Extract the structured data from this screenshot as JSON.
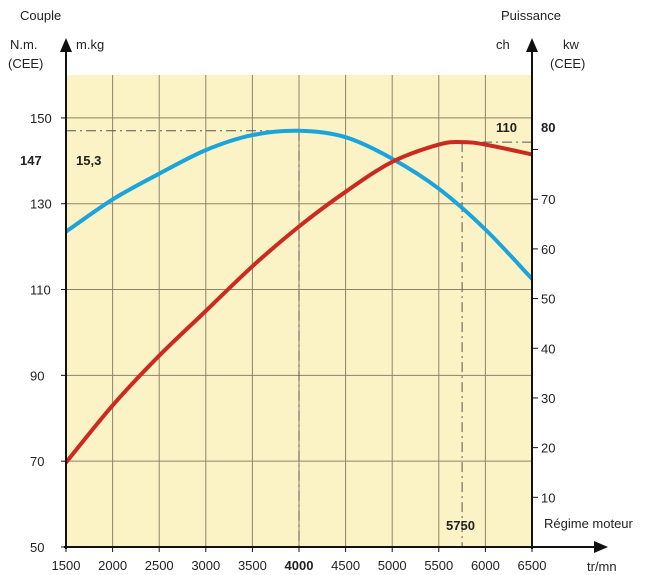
{
  "chart_data": {
    "type": "line",
    "title": "",
    "colors": {
      "plot_bg": "#fbf3c6",
      "grid": "#8c8467",
      "couple": "#1ba4db",
      "puissance": "#cc2a20",
      "axis": "#111111"
    },
    "left_axis": {
      "title": "Couple",
      "unit_nm": "N.m.",
      "unit_nm_sub": "(CEE)",
      "unit_mkg": "m.kg",
      "range": [
        50,
        160
      ],
      "ticks": [
        50,
        70,
        90,
        110,
        130,
        150
      ],
      "marker_nm": "147",
      "marker_mkg": "15,3"
    },
    "right_axis": {
      "title": "Puissance",
      "unit_ch": "ch",
      "unit_kw": "kw",
      "unit_kw_sub": "(CEE)",
      "range": [
        0,
        95
      ],
      "ticks": [
        10,
        20,
        30,
        40,
        50,
        60,
        70,
        80
      ],
      "marker_ch": "110",
      "marker_kw": "80"
    },
    "x_axis": {
      "label": "Régime moteur",
      "unit": "tr/mn",
      "range": [
        1500,
        6500
      ],
      "ticks": [
        1500,
        2000,
        2500,
        3000,
        3500,
        4000,
        4500,
        5000,
        5500,
        6000,
        6500
      ],
      "bold_ticks": [
        4000
      ],
      "marker_5750": "5750"
    },
    "series": [
      {
        "key": "couple",
        "axis": "left",
        "x": [
          1500,
          2000,
          2500,
          3000,
          3500,
          4000,
          4500,
          5000,
          5500,
          6000,
          6500
        ],
        "values": [
          123.5,
          131,
          137,
          142.5,
          146,
          147,
          145.5,
          140.5,
          133.5,
          124,
          112.5
        ]
      },
      {
        "key": "puissance",
        "axis": "right",
        "x": [
          1500,
          2000,
          2500,
          3000,
          3500,
          4000,
          4500,
          5000,
          5500,
          5750,
          6000,
          6500
        ],
        "values": [
          17,
          28.5,
          38.5,
          47.5,
          56.5,
          64.5,
          71.5,
          77.5,
          81,
          81.5,
          81,
          79
        ]
      }
    ]
  }
}
